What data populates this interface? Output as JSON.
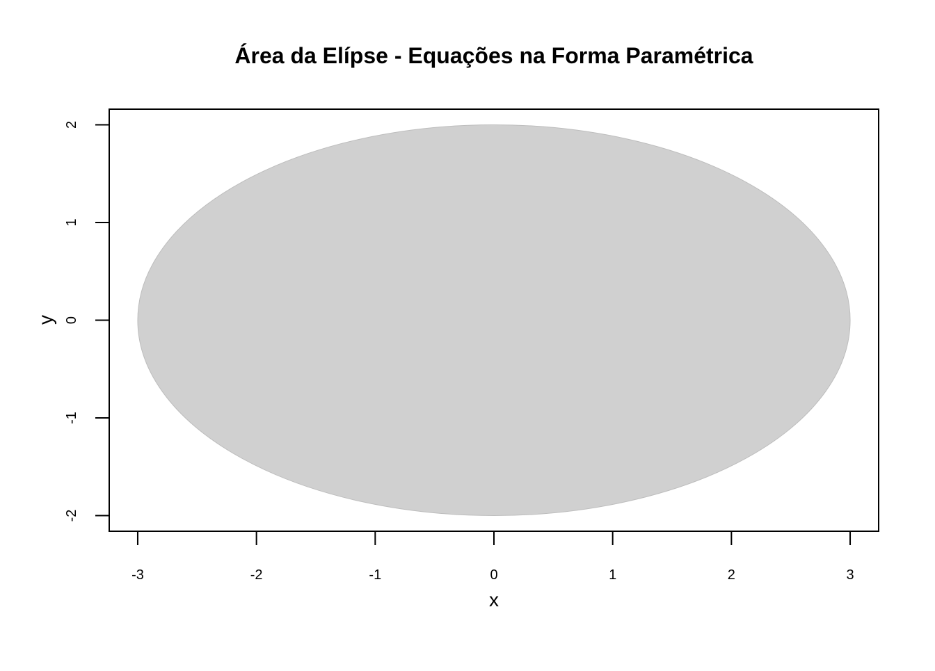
{
  "chart_data": {
    "type": "area",
    "title": "Área da Elípse - Equações na Forma Paramétrica",
    "xlabel": "x",
    "ylabel": "y",
    "xlim": [
      -3.24,
      3.24
    ],
    "ylim": [
      -2.16,
      2.16
    ],
    "xticks": [
      -3,
      -2,
      -1,
      0,
      1,
      2,
      3
    ],
    "yticks": [
      -2,
      -1,
      0,
      1,
      2
    ],
    "grid": false,
    "legend": "none",
    "series": [
      {
        "shape": "ellipse",
        "center": [
          0,
          0
        ],
        "semi_axis_x": 3,
        "semi_axis_y": 2,
        "fill_color": "#d0d0d0",
        "border_color": "#bdbdbd"
      }
    ]
  },
  "colors": {
    "background": "#ffffff",
    "axis": "#000000"
  }
}
